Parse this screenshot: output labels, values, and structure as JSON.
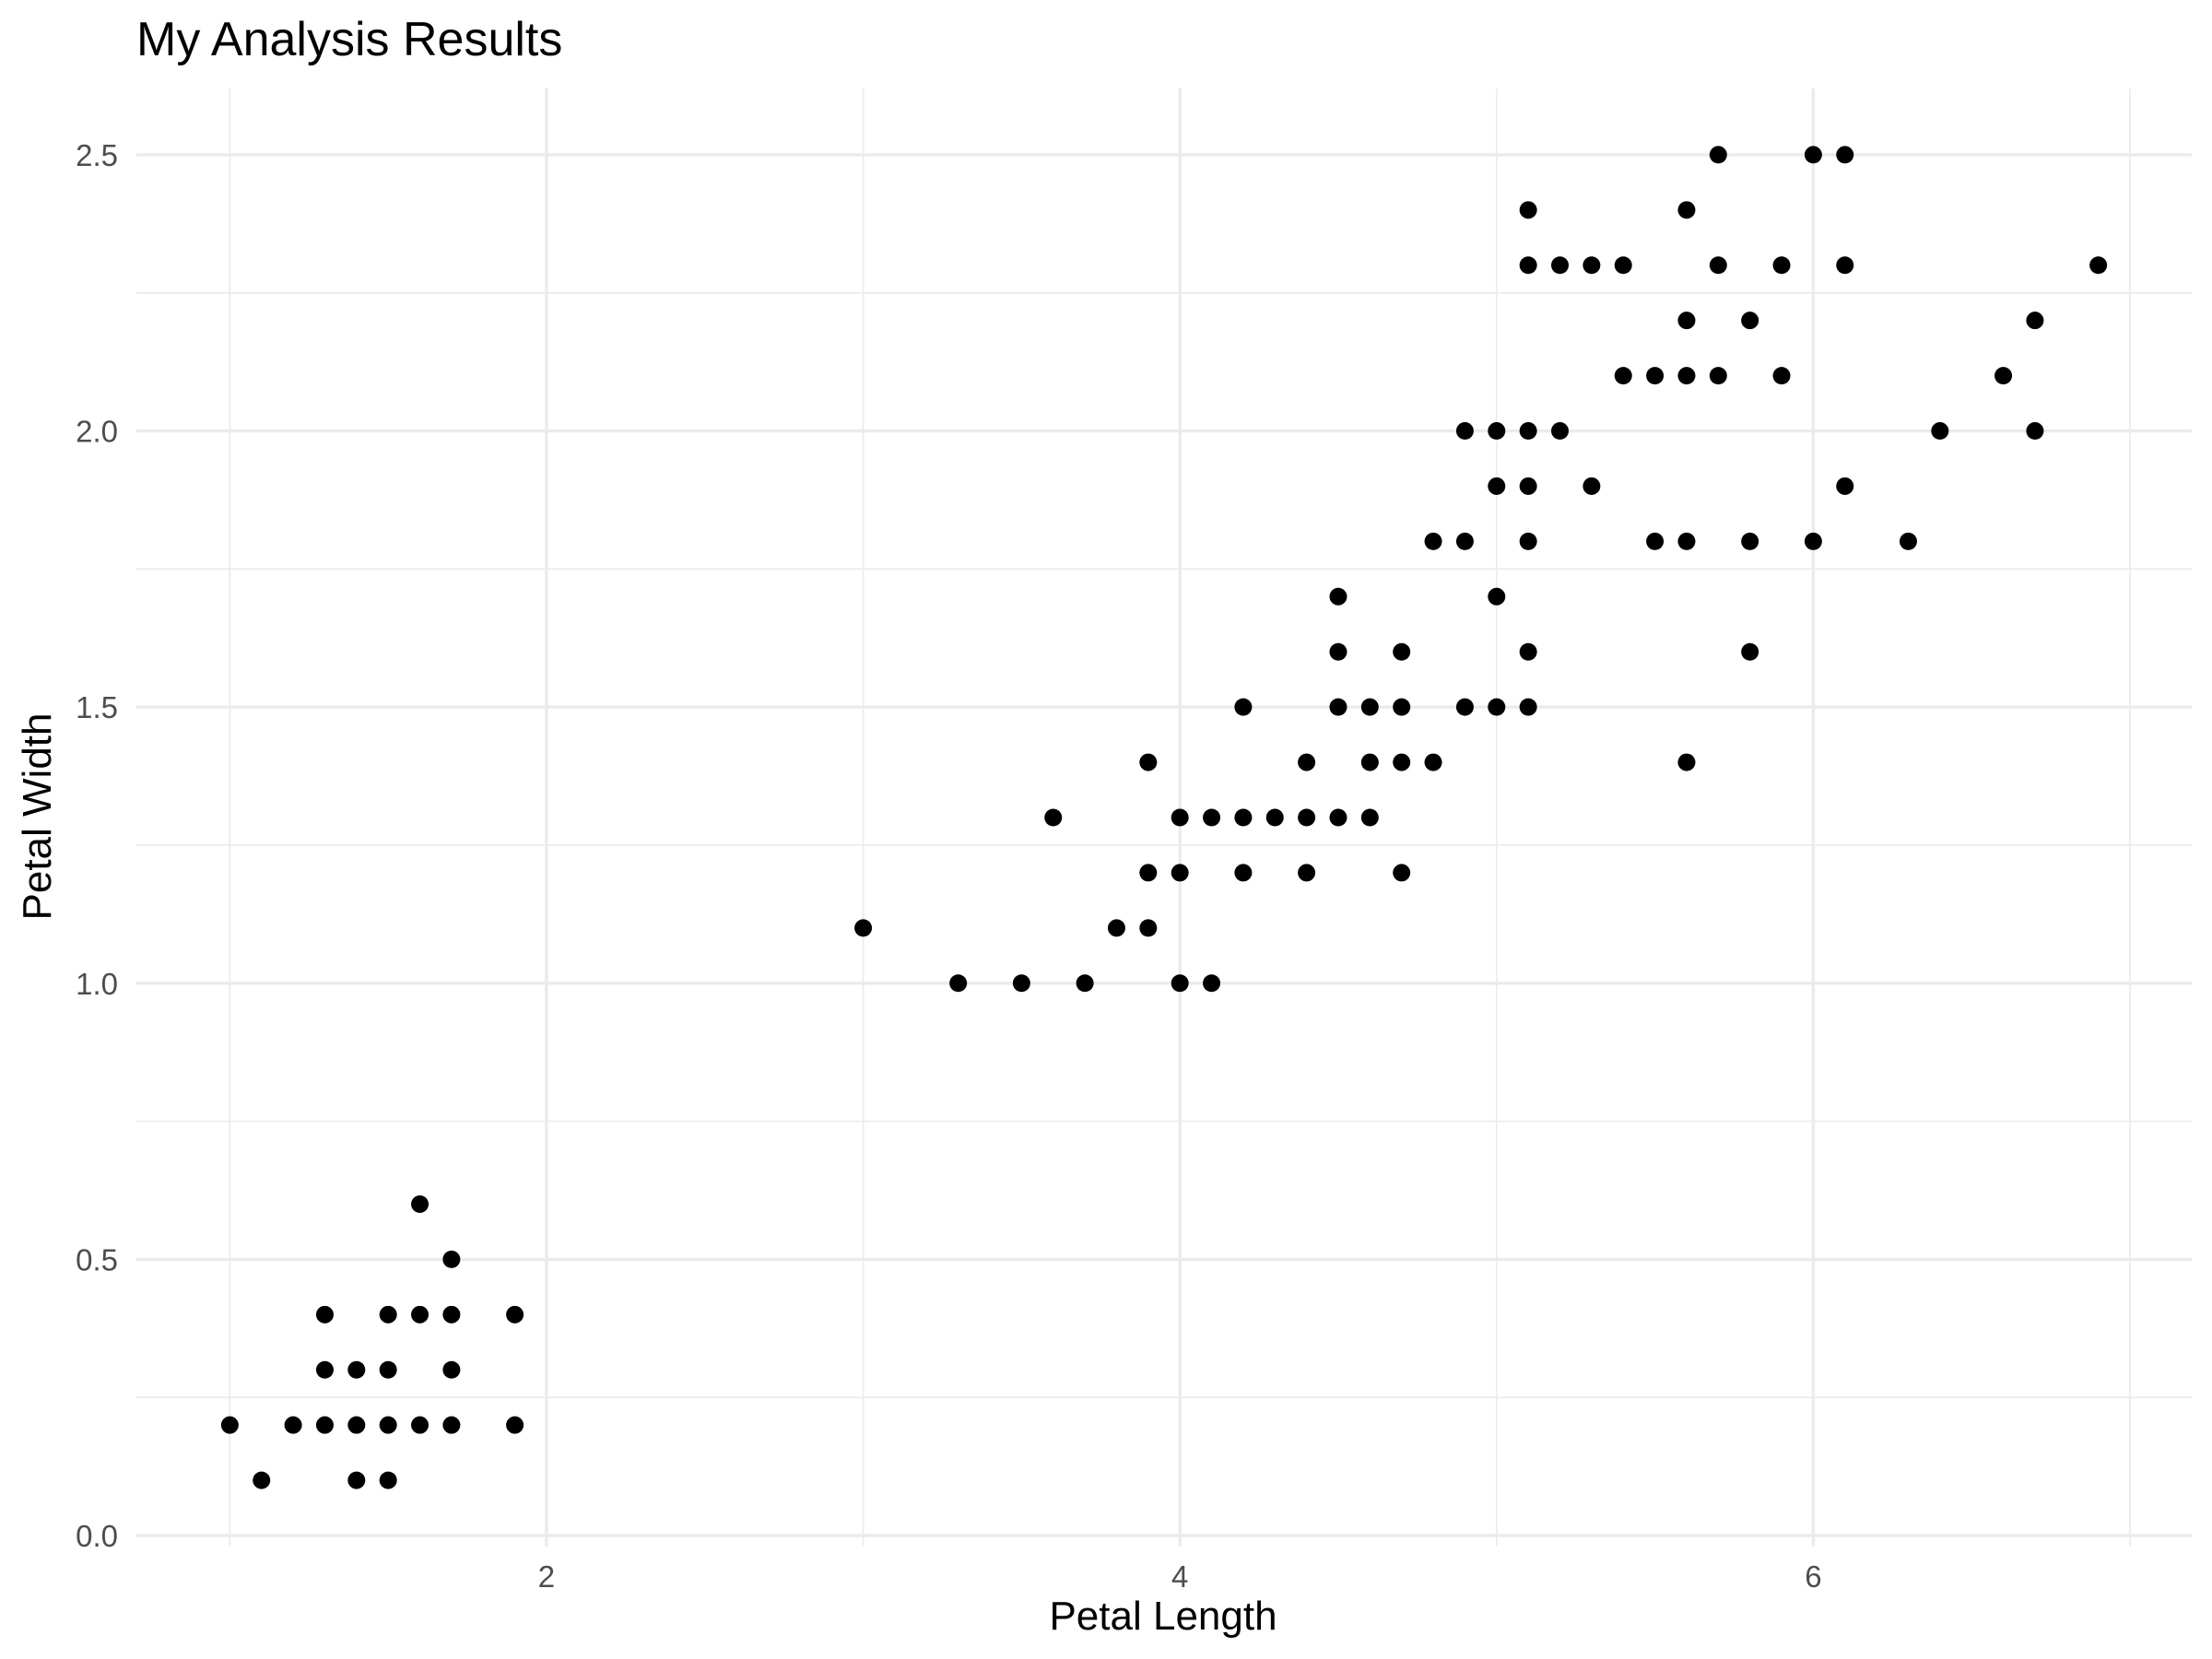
{
  "chart_data": {
    "type": "scatter",
    "title": "My Analysis Results",
    "xlabel": "Petal Length",
    "ylabel": "Petal Width",
    "xlim": [
      0.705,
      7.195
    ],
    "ylim": [
      -0.02,
      2.62
    ],
    "x_ticks": [
      2,
      4,
      6
    ],
    "x_tick_labels": [
      "2",
      "4",
      "6"
    ],
    "x_minor_ticks": [
      1,
      3,
      5,
      7
    ],
    "y_ticks": [
      0.0,
      0.5,
      1.0,
      1.5,
      2.0,
      2.5
    ],
    "y_tick_labels": [
      "0.0",
      "0.5",
      "1.0",
      "1.5",
      "2.0",
      "2.5"
    ],
    "y_minor_ticks": [
      0.25,
      0.75,
      1.25,
      1.75,
      2.25
    ],
    "grid": true,
    "legend": "none",
    "point_color": "#000000",
    "points": [
      [
        1.0,
        0.2
      ],
      [
        1.1,
        0.1
      ],
      [
        1.2,
        0.2
      ],
      [
        1.3,
        0.2
      ],
      [
        1.3,
        0.3
      ],
      [
        1.3,
        0.4
      ],
      [
        1.4,
        0.1
      ],
      [
        1.4,
        0.2
      ],
      [
        1.4,
        0.3
      ],
      [
        1.5,
        0.1
      ],
      [
        1.5,
        0.2
      ],
      [
        1.5,
        0.3
      ],
      [
        1.5,
        0.4
      ],
      [
        1.6,
        0.2
      ],
      [
        1.6,
        0.4
      ],
      [
        1.6,
        0.6
      ],
      [
        1.7,
        0.2
      ],
      [
        1.7,
        0.3
      ],
      [
        1.7,
        0.4
      ],
      [
        1.7,
        0.5
      ],
      [
        1.9,
        0.2
      ],
      [
        1.9,
        0.4
      ],
      [
        3.0,
        1.1
      ],
      [
        3.3,
        1.0
      ],
      [
        3.5,
        1.0
      ],
      [
        3.6,
        1.3
      ],
      [
        3.7,
        1.0
      ],
      [
        3.8,
        1.1
      ],
      [
        3.9,
        1.1
      ],
      [
        3.9,
        1.2
      ],
      [
        3.9,
        1.4
      ],
      [
        4.0,
        1.0
      ],
      [
        4.0,
        1.2
      ],
      [
        4.0,
        1.3
      ],
      [
        4.1,
        1.0
      ],
      [
        4.1,
        1.3
      ],
      [
        4.2,
        1.2
      ],
      [
        4.2,
        1.3
      ],
      [
        4.2,
        1.5
      ],
      [
        4.3,
        1.3
      ],
      [
        4.4,
        1.2
      ],
      [
        4.4,
        1.3
      ],
      [
        4.4,
        1.4
      ],
      [
        4.5,
        1.3
      ],
      [
        4.5,
        1.5
      ],
      [
        4.5,
        1.6
      ],
      [
        4.5,
        1.7
      ],
      [
        4.6,
        1.3
      ],
      [
        4.6,
        1.4
      ],
      [
        4.6,
        1.5
      ],
      [
        4.7,
        1.2
      ],
      [
        4.7,
        1.4
      ],
      [
        4.7,
        1.5
      ],
      [
        4.7,
        1.6
      ],
      [
        4.8,
        1.4
      ],
      [
        4.8,
        1.8
      ],
      [
        4.9,
        1.5
      ],
      [
        4.9,
        1.8
      ],
      [
        4.9,
        2.0
      ],
      [
        5.0,
        1.5
      ],
      [
        5.0,
        1.7
      ],
      [
        5.0,
        1.9
      ],
      [
        5.0,
        2.0
      ],
      [
        5.1,
        1.5
      ],
      [
        5.1,
        1.6
      ],
      [
        5.1,
        1.8
      ],
      [
        5.1,
        1.9
      ],
      [
        5.1,
        2.0
      ],
      [
        5.1,
        2.3
      ],
      [
        5.1,
        2.4
      ],
      [
        5.2,
        2.0
      ],
      [
        5.2,
        2.3
      ],
      [
        5.3,
        1.9
      ],
      [
        5.3,
        2.3
      ],
      [
        5.4,
        2.1
      ],
      [
        5.4,
        2.3
      ],
      [
        5.5,
        1.8
      ],
      [
        5.5,
        2.1
      ],
      [
        5.6,
        1.4
      ],
      [
        5.6,
        1.8
      ],
      [
        5.6,
        2.1
      ],
      [
        5.6,
        2.2
      ],
      [
        5.6,
        2.4
      ],
      [
        5.7,
        2.1
      ],
      [
        5.7,
        2.3
      ],
      [
        5.7,
        2.5
      ],
      [
        5.8,
        1.6
      ],
      [
        5.8,
        1.8
      ],
      [
        5.8,
        2.2
      ],
      [
        5.9,
        2.1
      ],
      [
        5.9,
        2.3
      ],
      [
        6.0,
        1.8
      ],
      [
        6.0,
        2.5
      ],
      [
        6.1,
        1.9
      ],
      [
        6.1,
        2.3
      ],
      [
        6.1,
        2.5
      ],
      [
        6.3,
        1.8
      ],
      [
        6.4,
        2.0
      ],
      [
        6.6,
        2.1
      ],
      [
        6.7,
        2.0
      ],
      [
        6.7,
        2.2
      ],
      [
        6.9,
        2.3
      ]
    ]
  }
}
